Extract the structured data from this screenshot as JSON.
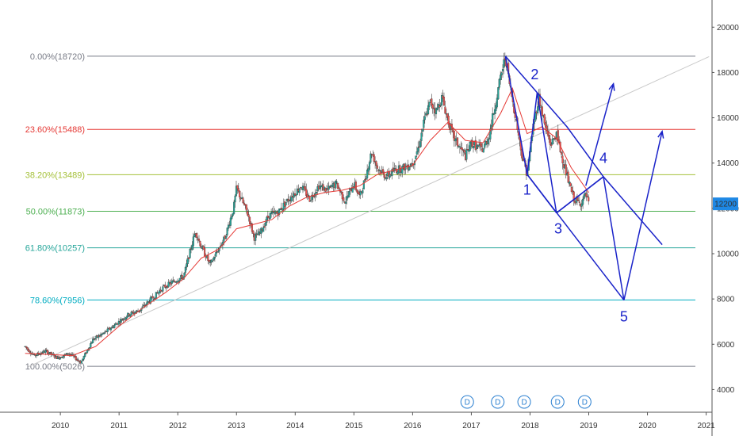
{
  "chart_data": {
    "type": "candlestick",
    "x_ticks": [
      "2010",
      "2011",
      "2012",
      "2013",
      "2014",
      "2015",
      "2016",
      "2017",
      "2018",
      "2019",
      "2020",
      "2021"
    ],
    "y_ticks": [
      4000,
      6000,
      8000,
      10000,
      12000,
      14000,
      16000,
      18000,
      20000
    ],
    "x_range": [
      2009.35,
      2021.1
    ],
    "y_range": [
      3000,
      21200
    ],
    "current_price": {
      "value": 12200,
      "label": "12200",
      "color": "#1e88e5"
    },
    "fib_levels": [
      {
        "label": "0.00%(18720)",
        "value": 18720,
        "color": "#787b86"
      },
      {
        "label": "23.60%(15488)",
        "value": 15488,
        "color": "#e53935"
      },
      {
        "label": "38.20%(13489)",
        "value": 13489,
        "color": "#a5c13a"
      },
      {
        "label": "50.00%(11873)",
        "value": 11873,
        "color": "#4caf50"
      },
      {
        "label": "61.80%(10257)",
        "value": 10257,
        "color": "#26a69a"
      },
      {
        "label": "78.60%(7956)",
        "value": 7956,
        "color": "#00acc1"
      },
      {
        "label": "100.00%(5026)",
        "value": 5026,
        "color": "#787b86"
      }
    ],
    "price_path": [
      [
        2009.4,
        5900
      ],
      [
        2009.55,
        5500
      ],
      [
        2009.75,
        5700
      ],
      [
        2009.95,
        5400
      ],
      [
        2010.15,
        5600
      ],
      [
        2010.35,
        5200
      ],
      [
        2010.55,
        6200
      ],
      [
        2010.75,
        6500
      ],
      [
        2010.95,
        6900
      ],
      [
        2011.15,
        7300
      ],
      [
        2011.35,
        7500
      ],
      [
        2011.55,
        8000
      ],
      [
        2011.75,
        8500
      ],
      [
        2011.95,
        8800
      ],
      [
        2012.1,
        9000
      ],
      [
        2012.2,
        10000
      ],
      [
        2012.3,
        11000
      ],
      [
        2012.4,
        10300
      ],
      [
        2012.5,
        9800
      ],
      [
        2012.55,
        9500
      ],
      [
        2012.65,
        10000
      ],
      [
        2012.8,
        10700
      ],
      [
        2012.95,
        12000
      ],
      [
        2013.0,
        12900
      ],
      [
        2013.1,
        12300
      ],
      [
        2013.2,
        11700
      ],
      [
        2013.3,
        10700
      ],
      [
        2013.4,
        10900
      ],
      [
        2013.55,
        11700
      ],
      [
        2013.7,
        11800
      ],
      [
        2013.85,
        12300
      ],
      [
        2014.0,
        12700
      ],
      [
        2014.1,
        13000
      ],
      [
        2014.25,
        12400
      ],
      [
        2014.4,
        13000
      ],
      [
        2014.55,
        12800
      ],
      [
        2014.7,
        13100
      ],
      [
        2014.85,
        12300
      ],
      [
        2015.0,
        13100
      ],
      [
        2015.1,
        12500
      ],
      [
        2015.2,
        13400
      ],
      [
        2015.3,
        14500
      ],
      [
        2015.4,
        13800
      ],
      [
        2015.55,
        13400
      ],
      [
        2015.7,
        13700
      ],
      [
        2015.85,
        13800
      ],
      [
        2016.0,
        14000
      ],
      [
        2016.1,
        14700
      ],
      [
        2016.2,
        15900
      ],
      [
        2016.3,
        16700
      ],
      [
        2016.4,
        16300
      ],
      [
        2016.5,
        16900
      ],
      [
        2016.6,
        15900
      ],
      [
        2016.7,
        15100
      ],
      [
        2016.8,
        14700
      ],
      [
        2016.9,
        14300
      ],
      [
        2017.0,
        14900
      ],
      [
        2017.1,
        14700
      ],
      [
        2017.2,
        14600
      ],
      [
        2017.3,
        15200
      ],
      [
        2017.4,
        16500
      ],
      [
        2017.5,
        17800
      ],
      [
        2017.58,
        18720
      ],
      [
        2017.65,
        17500
      ],
      [
        2017.75,
        16100
      ],
      [
        2017.85,
        14500
      ],
      [
        2017.95,
        13500
      ],
      [
        2018.05,
        15600
      ],
      [
        2018.15,
        16900
      ],
      [
        2018.25,
        15700
      ],
      [
        2018.35,
        14800
      ],
      [
        2018.45,
        15300
      ],
      [
        2018.55,
        14200
      ],
      [
        2018.65,
        13200
      ],
      [
        2018.75,
        12400
      ],
      [
        2018.85,
        12200
      ],
      [
        2018.95,
        12600
      ],
      [
        2019.0,
        12200
      ]
    ],
    "ma_path": [
      [
        2009.4,
        5600
      ],
      [
        2009.8,
        5550
      ],
      [
        2010.2,
        5500
      ],
      [
        2010.6,
        5900
      ],
      [
        2011.0,
        6800
      ],
      [
        2011.4,
        7600
      ],
      [
        2011.8,
        8300
      ],
      [
        2012.1,
        8900
      ],
      [
        2012.4,
        9800
      ],
      [
        2012.7,
        10200
      ],
      [
        2013.0,
        11100
      ],
      [
        2013.3,
        11300
      ],
      [
        2013.6,
        11500
      ],
      [
        2013.9,
        12100
      ],
      [
        2014.2,
        12500
      ],
      [
        2014.5,
        12700
      ],
      [
        2014.8,
        12800
      ],
      [
        2015.1,
        13000
      ],
      [
        2015.4,
        13500
      ],
      [
        2015.7,
        13700
      ],
      [
        2016.0,
        13900
      ],
      [
        2016.3,
        15000
      ],
      [
        2016.6,
        15800
      ],
      [
        2016.9,
        15000
      ],
      [
        2017.2,
        14900
      ],
      [
        2017.5,
        16200
      ],
      [
        2017.7,
        17300
      ],
      [
        2017.95,
        15300
      ],
      [
        2018.2,
        15600
      ],
      [
        2018.45,
        15100
      ],
      [
        2018.7,
        13800
      ],
      [
        2019.0,
        12700
      ]
    ],
    "trend_line": [
      [
        2009.45,
        5000
      ],
      [
        2021.05,
        18700
      ]
    ],
    "pattern_lines": [
      [
        [
          2017.58,
          18720
        ],
        [
          2018.63,
          15600
        ],
        [
          2019.25,
          13400
        ],
        [
          2020.25,
          10400
        ]
      ],
      [
        [
          2017.58,
          18720
        ],
        [
          2017.95,
          13500
        ]
      ],
      [
        [
          2017.95,
          13500
        ],
        [
          2018.12,
          17100
        ]
      ],
      [
        [
          2018.12,
          17100
        ],
        [
          2018.45,
          11800
        ]
      ],
      [
        [
          2018.45,
          11800
        ],
        [
          2019.25,
          13400
        ]
      ],
      [
        [
          2017.95,
          13500
        ],
        [
          2018.45,
          11800
        ]
      ],
      [
        [
          2017.95,
          13500
        ],
        [
          2019.6,
          7950
        ]
      ],
      [
        [
          2018.45,
          11800
        ],
        [
          2019.25,
          13400
        ]
      ],
      [
        [
          2019.25,
          13400
        ],
        [
          2019.6,
          7950
        ]
      ],
      [
        [
          2019.6,
          7950
        ],
        [
          2020.25,
          15400
        ]
      ],
      [
        [
          2018.95,
          13000
        ],
        [
          2019.42,
          17500
        ]
      ]
    ],
    "wave_labels": [
      {
        "text": "1",
        "x": 2017.95,
        "y": 12600
      },
      {
        "text": "2",
        "x": 2018.08,
        "y": 17700
      },
      {
        "text": "3",
        "x": 2018.48,
        "y": 10900
      },
      {
        "text": "4",
        "x": 2019.25,
        "y": 14000
      },
      {
        "text": "5",
        "x": 2019.6,
        "y": 7000
      }
    ],
    "dividend_markers": [
      {
        "text": "D",
        "x": 2016.93
      },
      {
        "text": "D",
        "x": 2017.45
      },
      {
        "text": "D",
        "x": 2017.9
      },
      {
        "text": "D",
        "x": 2018.47
      },
      {
        "text": "D",
        "x": 2018.93
      }
    ],
    "colors": {
      "up": "#26a69a",
      "down": "#ef5350",
      "ma": "#e53935",
      "pattern": "#1a23c9"
    }
  }
}
